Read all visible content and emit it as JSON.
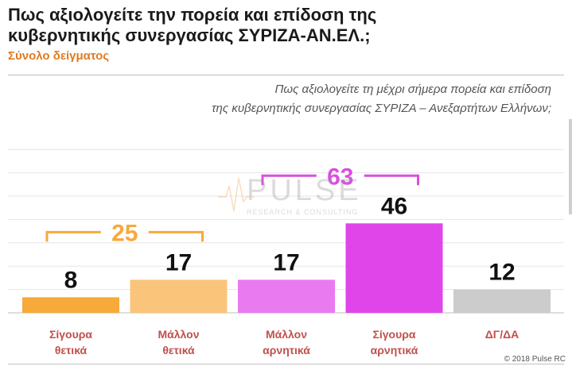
{
  "header": {
    "title_line1": "Πως αξιολογείτε την πορεία και επίδοση της",
    "title_line2": "κυβερνητικής συνεργασίας ΣΥΡΙΖΑ-ΑΝ.ΕΛ.;",
    "subtitle": "Σύνολο δείγματος",
    "question_line1": "Πως αξιολογείτε τη μέχρι σήμερα πορεία και επίδοση",
    "question_line2": "της κυβερνητικής συνεργασίας ΣΥΡΙΖΑ – Ανεξαρτήτων Ελλήνων;"
  },
  "watermark": {
    "brand": "PULSE",
    "tagline": "RESEARCH & CONSULTING"
  },
  "footer": {
    "copyright": "© 2018 Pulse RC"
  },
  "chart_data": {
    "type": "bar",
    "categories": [
      [
        "Σίγουρα",
        "θετικά"
      ],
      [
        "Μάλλον",
        "θετικά"
      ],
      [
        "Μάλλον",
        "αρνητικά"
      ],
      [
        "Σίγουρα",
        "αρνητικά"
      ],
      [
        "ΔΓ/ΔΑ"
      ]
    ],
    "values": [
      8,
      17,
      17,
      46,
      12
    ],
    "data_labels": [
      "8",
      "17",
      "17",
      "46",
      "12"
    ],
    "bar_colors": [
      "#f7a93a",
      "#fac57a",
      "#ea7af0",
      "#e045ea",
      "#cccccc"
    ],
    "ylim": [
      0,
      100
    ],
    "grid": true,
    "groups": [
      {
        "label": "25",
        "value": 25,
        "from": 0,
        "to": 1,
        "color": "#f7a93a"
      },
      {
        "label": "63",
        "value": 63,
        "from": 2,
        "to": 3,
        "color": "#d94fe0"
      }
    ],
    "category_label_color": "#c0504d"
  }
}
